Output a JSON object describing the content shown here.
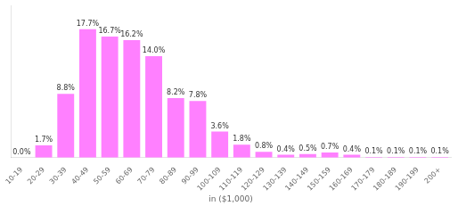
{
  "chart_data": {
    "type": "bar",
    "categories": [
      "10-19",
      "20-29",
      "30-39",
      "40-49",
      "50-59",
      "60-69",
      "70-79",
      "80-89",
      "90-99",
      "100-109",
      "110-119",
      "120-129",
      "130-139",
      "140-149",
      "150-159",
      "160-169",
      "170-179",
      "180-189",
      "190-199",
      "200+"
    ],
    "values": [
      0.0,
      1.7,
      8.8,
      17.7,
      16.7,
      16.2,
      14.0,
      8.2,
      7.8,
      3.6,
      1.8,
      0.8,
      0.4,
      0.5,
      0.7,
      0.4,
      0.1,
      0.1,
      0.1,
      0.1
    ],
    "value_labels": [
      "0.0%",
      "1.7%",
      "8.8%",
      "17.7%",
      "16.7%",
      "16.2%",
      "14.0%",
      "8.2%",
      "7.8%",
      "3.6%",
      "1.8%",
      "0.8%",
      "0.4%",
      "0.5%",
      "0.7%",
      "0.4%",
      "0.1%",
      "0.1%",
      "0.1%",
      "0.1%"
    ],
    "data_labels": true,
    "color": "#FF80FF",
    "xlabel": "in ($1,000)",
    "ylim": [
      0,
      21
    ],
    "grid": false,
    "tick_labels": "x"
  }
}
